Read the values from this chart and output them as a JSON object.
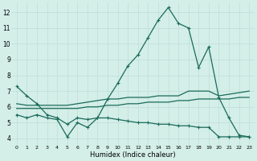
{
  "xlabel": "Humidex (Indice chaleur)",
  "bg_color": "#d4eee8",
  "line_color": "#1a6b5a",
  "grid_color": "#c0ddd8",
  "xlim": [
    -0.5,
    23.5
  ],
  "ylim": [
    3.6,
    12.6
  ],
  "xticks": [
    0,
    1,
    2,
    3,
    4,
    5,
    6,
    7,
    8,
    9,
    10,
    11,
    12,
    13,
    14,
    15,
    16,
    17,
    18,
    19,
    20,
    21,
    22,
    23
  ],
  "yticks": [
    4,
    5,
    6,
    7,
    8,
    9,
    10,
    11,
    12
  ],
  "s1_x": [
    0,
    1,
    2,
    3,
    4,
    5,
    6,
    7,
    8,
    9,
    10,
    11,
    12,
    13,
    14,
    15,
    16,
    17,
    18,
    19,
    20,
    21,
    22,
    23
  ],
  "s1_y": [
    7.3,
    6.7,
    6.2,
    5.5,
    5.3,
    4.9,
    5.3,
    5.2,
    5.3,
    6.5,
    7.5,
    8.6,
    9.3,
    10.4,
    11.5,
    12.3,
    11.3,
    11.0,
    8.5,
    9.8,
    6.6,
    5.3,
    4.2,
    4.1
  ],
  "s2_x": [
    0,
    1,
    2,
    3,
    4,
    5,
    6,
    7,
    8,
    9,
    10,
    11,
    12,
    13,
    14,
    15,
    16,
    17,
    18,
    19,
    20,
    21,
    22,
    23
  ],
  "s2_y": [
    6.2,
    6.1,
    6.1,
    6.1,
    6.1,
    6.1,
    6.2,
    6.3,
    6.4,
    6.5,
    6.5,
    6.6,
    6.6,
    6.6,
    6.7,
    6.7,
    6.7,
    7.0,
    7.0,
    7.0,
    6.7,
    6.8,
    6.9,
    7.0
  ],
  "s3_x": [
    0,
    1,
    2,
    3,
    4,
    5,
    6,
    7,
    8,
    9,
    10,
    11,
    12,
    13,
    14,
    15,
    16,
    17,
    18,
    19,
    20,
    21,
    22,
    23
  ],
  "s3_y": [
    5.9,
    5.9,
    5.9,
    5.9,
    5.9,
    5.9,
    5.9,
    6.0,
    6.0,
    6.1,
    6.1,
    6.2,
    6.2,
    6.3,
    6.3,
    6.3,
    6.4,
    6.4,
    6.5,
    6.5,
    6.5,
    6.5,
    6.6,
    6.6
  ],
  "s4_x": [
    0,
    1,
    2,
    3,
    4,
    5,
    6,
    7,
    8,
    9,
    10,
    11,
    12,
    13,
    14,
    15,
    16,
    17,
    18,
    19,
    20,
    21,
    22,
    23
  ],
  "s4_y": [
    5.5,
    5.3,
    5.5,
    5.3,
    5.2,
    4.1,
    5.0,
    4.7,
    5.3,
    5.3,
    5.2,
    5.1,
    5.0,
    5.0,
    4.9,
    4.9,
    4.8,
    4.8,
    4.7,
    4.7,
    4.1,
    4.1,
    4.1,
    4.1
  ]
}
